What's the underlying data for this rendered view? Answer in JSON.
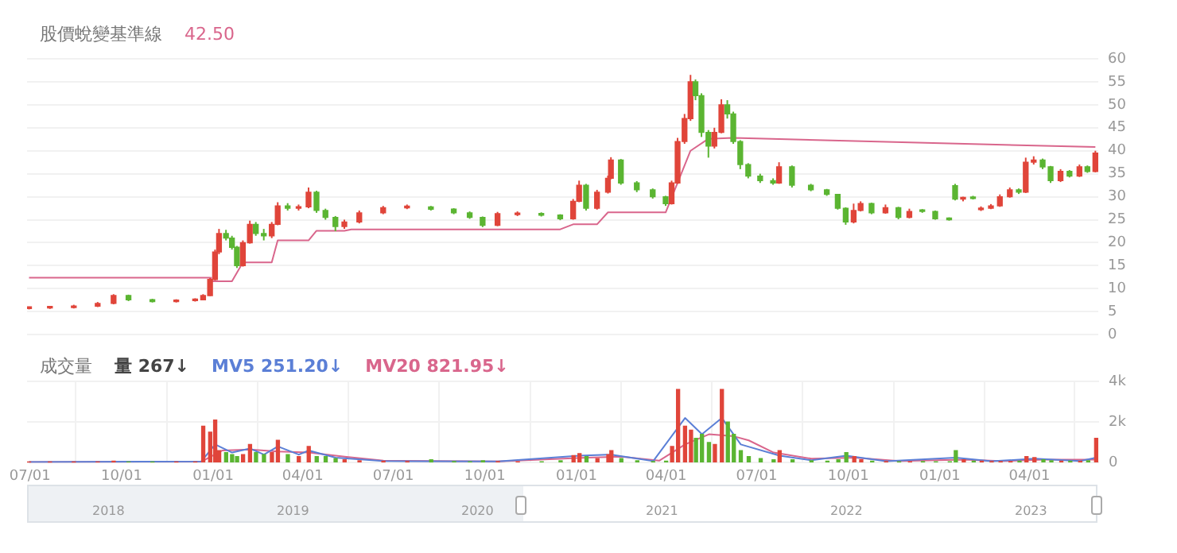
{
  "chart_data": [
    {
      "type": "candlestick",
      "legend": "top left",
      "tick_labels": "y",
      "grid": true,
      "x": [
        "2020-06-30",
        "2020-07-21",
        "2020-08-14",
        "2020-09-07",
        "2020-09-23",
        "2020-10-08",
        "2020-11-01",
        "2020-11-25",
        "2020-12-14",
        "2020-12-22",
        "2020-12-29",
        "2021-01-03",
        "2021-01-07",
        "2021-01-14",
        "2021-01-20",
        "2021-01-25",
        "2021-01-31",
        "2021-02-07",
        "2021-02-13",
        "2021-02-21",
        "2021-03-01",
        "2021-03-07",
        "2021-03-17",
        "2021-03-28",
        "2021-04-07",
        "2021-04-15",
        "2021-04-24",
        "2021-05-04",
        "2021-05-13",
        "2021-05-28",
        "2021-06-21",
        "2021-07-15",
        "2021-08-08",
        "2021-08-31",
        "2021-09-16",
        "2021-09-29",
        "2021-10-14",
        "2021-11-03",
        "2021-11-27",
        "2021-12-16",
        "2021-12-29",
        "2022-01-04",
        "2022-01-11",
        "2022-01-22",
        "2022-02-02",
        "2022-02-05",
        "2022-02-15",
        "2022-03-03",
        "2022-03-19",
        "2022-04-01",
        "2022-04-07",
        "2022-04-13",
        "2022-04-20",
        "2022-04-26",
        "2022-05-01",
        "2022-05-07",
        "2022-05-14",
        "2022-05-20",
        "2022-05-27",
        "2022-06-02",
        "2022-06-08",
        "2022-06-15",
        "2022-06-23",
        "2022-07-05",
        "2022-07-18",
        "2022-07-24",
        "2022-08-06",
        "2022-08-25",
        "2022-09-10",
        "2022-09-21",
        "2022-09-29",
        "2022-10-07",
        "2022-10-14",
        "2022-10-25",
        "2022-11-08",
        "2022-11-21",
        "2022-12-02",
        "2022-12-15",
        "2022-12-28",
        "2023-01-11",
        "2023-01-17",
        "2023-01-25",
        "2023-02-04",
        "2023-02-12",
        "2023-02-22",
        "2023-03-03",
        "2023-03-13",
        "2023-03-22",
        "2023-03-29",
        "2023-04-06",
        "2023-04-15",
        "2023-04-23",
        "2023-05-03",
        "2023-05-12",
        "2023-05-22",
        "2023-05-30",
        "2023-06-07"
      ],
      "ohlc": [
        [
          5.7,
          6.1,
          5.5,
          5.8
        ],
        [
          5.8,
          6.2,
          5.6,
          5.9
        ],
        [
          5.9,
          6.5,
          5.7,
          6.2
        ],
        [
          6.2,
          7.1,
          6.0,
          6.8
        ],
        [
          6.8,
          8.8,
          6.6,
          8.5
        ],
        [
          8.5,
          8.7,
          7.3,
          7.6
        ],
        [
          7.6,
          7.8,
          7.0,
          7.2
        ],
        [
          7.2,
          7.7,
          7.0,
          7.4
        ],
        [
          7.4,
          7.9,
          7.2,
          7.6
        ],
        [
          7.6,
          8.8,
          7.5,
          8.5
        ],
        [
          8.5,
          12.3,
          8.4,
          12
        ],
        [
          12,
          18.5,
          11.8,
          18
        ],
        [
          18,
          23,
          17.5,
          22
        ],
        [
          22,
          22.8,
          20.5,
          21
        ],
        [
          21,
          21.5,
          18.5,
          19
        ],
        [
          19,
          19.3,
          14.5,
          15
        ],
        [
          15,
          20.5,
          14.8,
          20
        ],
        [
          20,
          24.8,
          19.8,
          24
        ],
        [
          24,
          24.5,
          21.5,
          22
        ],
        [
          22,
          23,
          20.5,
          21.5
        ],
        [
          21.5,
          24.5,
          21,
          24
        ],
        [
          24,
          28.8,
          23.8,
          28
        ],
        [
          28,
          28.6,
          27,
          27.5
        ],
        [
          27.5,
          28.3,
          27,
          27.8
        ],
        [
          27.8,
          32,
          27.5,
          31
        ],
        [
          31,
          31.3,
          26.5,
          27
        ],
        [
          27,
          27.4,
          25,
          25.5
        ],
        [
          25.5,
          25.8,
          22.5,
          23.5
        ],
        [
          23.5,
          25,
          23,
          24.5
        ],
        [
          24.5,
          27,
          24.2,
          26.5
        ],
        [
          26.5,
          28,
          26.2,
          27.6
        ],
        [
          27.6,
          28.3,
          27.3,
          27.8
        ],
        [
          27.8,
          28,
          27,
          27.3
        ],
        [
          27.3,
          27.5,
          26.2,
          26.5
        ],
        [
          26.5,
          26.8,
          25.2,
          25.5
        ],
        [
          25.5,
          25.7,
          23.4,
          23.8
        ],
        [
          23.8,
          26.7,
          23.6,
          26.3
        ],
        [
          26.1,
          26.8,
          25.8,
          26.3
        ],
        [
          26.3,
          26.6,
          25.7,
          26
        ],
        [
          26,
          26.2,
          24.9,
          25.2
        ],
        [
          25.2,
          29.5,
          25,
          29
        ],
        [
          29,
          33.5,
          28.8,
          32.5
        ],
        [
          32.5,
          32.8,
          27,
          27.5
        ],
        [
          27.5,
          31.5,
          27.2,
          31
        ],
        [
          31,
          34.6,
          30.7,
          34
        ],
        [
          34,
          38.6,
          33.8,
          38
        ],
        [
          38,
          38.2,
          32.6,
          33
        ],
        [
          33,
          33.4,
          31,
          31.5
        ],
        [
          31.5,
          31.8,
          29.6,
          30
        ],
        [
          30,
          30.2,
          28,
          28.5
        ],
        [
          28.5,
          33.5,
          28.3,
          33
        ],
        [
          33,
          42.8,
          32.8,
          42
        ],
        [
          42,
          48,
          41.5,
          47
        ],
        [
          47,
          56.5,
          46.5,
          55
        ],
        [
          55,
          55.5,
          51,
          52
        ],
        [
          52,
          52.5,
          43,
          44
        ],
        [
          44,
          44.5,
          38.5,
          41
        ],
        [
          41,
          45,
          40.5,
          44
        ],
        [
          44,
          51.2,
          43.8,
          50
        ],
        [
          50,
          51,
          47,
          48
        ],
        [
          48,
          48.5,
          41.5,
          42
        ],
        [
          42,
          42.3,
          36,
          37
        ],
        [
          37,
          37.3,
          34,
          34.5
        ],
        [
          34.5,
          35,
          33,
          33.5
        ],
        [
          33.5,
          34,
          32.6,
          33
        ],
        [
          33,
          37.5,
          32.8,
          36.5
        ],
        [
          36.5,
          36.8,
          32,
          32.5
        ],
        [
          32.5,
          32.8,
          31.2,
          31.5
        ],
        [
          31.5,
          31.7,
          30.2,
          30.5
        ],
        [
          30.5,
          30.6,
          27.2,
          27.5
        ],
        [
          27.5,
          27.7,
          23.9,
          24.5
        ],
        [
          24.5,
          28.5,
          24.2,
          27
        ],
        [
          27,
          29,
          26.8,
          28.5
        ],
        [
          28.5,
          28.7,
          26.2,
          26.5
        ],
        [
          26.5,
          28.3,
          26.3,
          27.6
        ],
        [
          27.6,
          27.8,
          25.1,
          25.5
        ],
        [
          25.5,
          27.4,
          25.3,
          26.8
        ],
        [
          27,
          27.3,
          26.5,
          26.8
        ],
        [
          26.8,
          27,
          25,
          25.2
        ],
        [
          25.2,
          25.5,
          24.8,
          25
        ],
        [
          32.4,
          32.8,
          29.2,
          29.5
        ],
        [
          29.5,
          30,
          29,
          29.8
        ],
        [
          29.8,
          30.2,
          29.4,
          29.6
        ],
        [
          27.2,
          27.9,
          26.9,
          27.5
        ],
        [
          27.5,
          28.4,
          27.3,
          28
        ],
        [
          28,
          30.5,
          27.8,
          30
        ],
        [
          30,
          32,
          29.8,
          31.5
        ],
        [
          31.5,
          31.8,
          30.6,
          31
        ],
        [
          31,
          38.5,
          30.8,
          37.5
        ],
        [
          37.5,
          38.8,
          37,
          38
        ],
        [
          38,
          38.3,
          36,
          36.5
        ],
        [
          36.5,
          36.7,
          33,
          33.5
        ],
        [
          33.5,
          36,
          33.2,
          35.5
        ],
        [
          35.5,
          35.8,
          34.2,
          34.5
        ],
        [
          34.5,
          37,
          34.3,
          36.5
        ],
        [
          36.5,
          36.8,
          35.2,
          35.5
        ],
        [
          35.5,
          40,
          35.3,
          39.5
        ]
      ],
      "colors": [
        "#e0453a",
        "#e0453a",
        "#e0453a",
        "#e0453a",
        "#e0453a",
        "#5bb532",
        "#5bb532",
        "#e0453a",
        "#e0453a",
        "#e0453a",
        "#e0453a",
        "#e0453a",
        "#e0453a",
        "#5bb532",
        "#5bb532",
        "#5bb532",
        "#e0453a",
        "#e0453a",
        "#5bb532",
        "#5bb532",
        "#e0453a",
        "#e0453a",
        "#5bb532",
        "#e0453a",
        "#e0453a",
        "#5bb532",
        "#5bb532",
        "#5bb532",
        "#e0453a",
        "#e0453a",
        "#e0453a",
        "#e0453a",
        "#5bb532",
        "#5bb532",
        "#5bb532",
        "#5bb532",
        "#e0453a",
        "#e0453a",
        "#5bb532",
        "#5bb532",
        "#e0453a",
        "#e0453a",
        "#5bb532",
        "#e0453a",
        "#e0453a",
        "#e0453a",
        "#5bb532",
        "#5bb532",
        "#5bb532",
        "#5bb532",
        "#e0453a",
        "#e0453a",
        "#e0453a",
        "#e0453a",
        "#5bb532",
        "#5bb532",
        "#5bb532",
        "#e0453a",
        "#e0453a",
        "#5bb532",
        "#5bb532",
        "#5bb532",
        "#5bb532",
        "#5bb532",
        "#5bb532",
        "#e0453a",
        "#5bb532",
        "#5bb532",
        "#5bb532",
        "#5bb532",
        "#5bb532",
        "#e0453a",
        "#e0453a",
        "#5bb532",
        "#e0453a",
        "#5bb532",
        "#e0453a",
        "#5bb532",
        "#5bb532",
        "#5bb532",
        "#5bb532",
        "#e0453a",
        "#5bb532",
        "#e0453a",
        "#e0453a",
        "#e0453a",
        "#e0453a",
        "#5bb532",
        "#e0453a",
        "#e0453a",
        "#5bb532",
        "#5bb532",
        "#e0453a",
        "#5bb532",
        "#e0453a",
        "#5bb532",
        "#e0453a"
      ],
      "series": [
        {
          "name": "股價蛻變基準線",
          "type": "line",
          "color": "#d9668c",
          "x": [
            "2020-06-30",
            "2020-12-29",
            "2020-12-30",
            "2021-01-20",
            "2021-01-31",
            "2021-03-01",
            "2021-03-07",
            "2021-04-07",
            "2021-04-15",
            "2021-05-13",
            "2021-05-20",
            "2021-12-16",
            "2021-12-29",
            "2022-01-22",
            "2022-02-02",
            "2022-04-01",
            "2022-04-13",
            "2022-04-26",
            "2022-05-14",
            "2022-06-08",
            "2023-06-07"
          ],
          "values": [
            12.4,
            12.4,
            11.6,
            11.6,
            15.7,
            15.7,
            20.5,
            20.5,
            22.6,
            22.6,
            22.9,
            22.9,
            24,
            24,
            26.6,
            26.6,
            33,
            40,
            42.6,
            42.8,
            40.8
          ]
        }
      ],
      "annotations": [
        "42.50"
      ],
      "xlim": [
        "2020-06-28",
        "2023-06-10"
      ],
      "xticks": [
        {
          "value": "2020-07-01",
          "label": null
        },
        {
          "value": "2020-10-01",
          "label": null
        },
        {
          "value": "2021-01-01",
          "label": null
        },
        {
          "value": "2021-04-01",
          "label": null
        },
        {
          "value": "2021-07-01",
          "label": null
        },
        {
          "value": "2021-10-01",
          "label": null
        },
        {
          "value": "2022-01-01",
          "label": null
        },
        {
          "value": "2022-04-01",
          "label": null
        },
        {
          "value": "2022-07-01",
          "label": null
        },
        {
          "value": "2022-10-01",
          "label": null
        },
        {
          "value": "2023-01-01",
          "label": null
        },
        {
          "value": "2023-04-01",
          "label": null
        }
      ],
      "ylim": [
        0,
        60
      ],
      "yticks": [
        0,
        5,
        10,
        15,
        20,
        25,
        30,
        35,
        40,
        45,
        50,
        55,
        60
      ]
    },
    {
      "type": "bar",
      "title": "成交量",
      "legend": "top left",
      "grid": true,
      "x": [
        "2020-06-30",
        "2020-07-21",
        "2020-08-14",
        "2020-09-07",
        "2020-09-23",
        "2020-10-08",
        "2020-11-01",
        "2020-11-25",
        "2020-12-14",
        "2020-12-22",
        "2020-12-29",
        "2021-01-03",
        "2021-01-07",
        "2021-01-14",
        "2021-01-20",
        "2021-01-25",
        "2021-01-31",
        "2021-02-07",
        "2021-02-13",
        "2021-02-21",
        "2021-03-01",
        "2021-03-07",
        "2021-03-17",
        "2021-03-28",
        "2021-04-07",
        "2021-04-15",
        "2021-04-24",
        "2021-05-04",
        "2021-05-13",
        "2021-05-28",
        "2021-06-21",
        "2021-07-15",
        "2021-08-08",
        "2021-08-31",
        "2021-09-16",
        "2021-09-29",
        "2021-10-14",
        "2021-11-03",
        "2021-11-27",
        "2021-12-16",
        "2021-12-29",
        "2022-01-04",
        "2022-01-11",
        "2022-01-22",
        "2022-02-02",
        "2022-02-05",
        "2022-02-15",
        "2022-03-03",
        "2022-03-19",
        "2022-04-01",
        "2022-04-07",
        "2022-04-13",
        "2022-04-20",
        "2022-04-26",
        "2022-05-01",
        "2022-05-07",
        "2022-05-14",
        "2022-05-20",
        "2022-05-27",
        "2022-06-02",
        "2022-06-08",
        "2022-06-15",
        "2022-06-23",
        "2022-07-05",
        "2022-07-18",
        "2022-07-24",
        "2022-08-06",
        "2022-08-25",
        "2022-09-10",
        "2022-09-21",
        "2022-09-29",
        "2022-10-07",
        "2022-10-14",
        "2022-10-25",
        "2022-11-08",
        "2022-11-21",
        "2022-12-02",
        "2022-12-15",
        "2022-12-28",
        "2023-01-11",
        "2023-01-17",
        "2023-01-25",
        "2023-02-04",
        "2023-02-12",
        "2023-02-22",
        "2023-03-03",
        "2023-03-13",
        "2023-03-22",
        "2023-03-29",
        "2023-04-06",
        "2023-04-15",
        "2023-04-23",
        "2023-05-03",
        "2023-05-12",
        "2023-05-22",
        "2023-05-30",
        "2023-06-07"
      ],
      "series": [
        {
          "name": "量 267↓",
          "type": "bar",
          "colors": [
            "#e0453a",
            "#e0453a",
            "#e0453a",
            "#e0453a",
            "#e0453a",
            "#5bb532",
            "#5bb532",
            "#e0453a",
            "#e0453a",
            "#e0453a",
            "#e0453a",
            "#e0453a",
            "#e0453a",
            "#5bb532",
            "#5bb532",
            "#5bb532",
            "#e0453a",
            "#e0453a",
            "#5bb532",
            "#5bb532",
            "#e0453a",
            "#e0453a",
            "#5bb532",
            "#e0453a",
            "#e0453a",
            "#5bb532",
            "#5bb532",
            "#5bb532",
            "#e0453a",
            "#e0453a",
            "#e0453a",
            "#e0453a",
            "#5bb532",
            "#5bb532",
            "#5bb532",
            "#5bb532",
            "#e0453a",
            "#e0453a",
            "#5bb532",
            "#5bb532",
            "#e0453a",
            "#e0453a",
            "#5bb532",
            "#e0453a",
            "#e0453a",
            "#e0453a",
            "#5bb532",
            "#5bb532",
            "#5bb532",
            "#5bb532",
            "#e0453a",
            "#e0453a",
            "#e0453a",
            "#e0453a",
            "#5bb532",
            "#5bb532",
            "#5bb532",
            "#e0453a",
            "#e0453a",
            "#5bb532",
            "#5bb532",
            "#5bb532",
            "#5bb532",
            "#5bb532",
            "#5bb532",
            "#e0453a",
            "#5bb532",
            "#5bb532",
            "#5bb532",
            "#5bb532",
            "#5bb532",
            "#e0453a",
            "#e0453a",
            "#5bb532",
            "#e0453a",
            "#5bb532",
            "#e0453a",
            "#5bb532",
            "#5bb532",
            "#5bb532",
            "#5bb532",
            "#e0453a",
            "#5bb532",
            "#e0453a",
            "#e0453a",
            "#e0453a",
            "#e0453a",
            "#5bb532",
            "#e0453a",
            "#e0453a",
            "#5bb532",
            "#5bb532",
            "#e0453a",
            "#5bb532",
            "#e0453a",
            "#5bb532",
            "#e0453a"
          ],
          "values": [
            30,
            30,
            30,
            40,
            80,
            40,
            30,
            30,
            30,
            1800,
            1500,
            2100,
            600,
            500,
            400,
            300,
            400,
            900,
            500,
            400,
            500,
            1100,
            400,
            300,
            800,
            300,
            300,
            200,
            150,
            100,
            80,
            60,
            150,
            60,
            50,
            100,
            60,
            50,
            50,
            100,
            350,
            450,
            300,
            200,
            400,
            600,
            200,
            100,
            60,
            80,
            800,
            3600,
            1800,
            1600,
            1200,
            1400,
            1000,
            900,
            3600,
            2000,
            1400,
            600,
            300,
            200,
            150,
            600,
            150,
            100,
            80,
            150,
            500,
            300,
            150,
            80,
            60,
            50,
            50,
            60,
            50,
            50,
            600,
            150,
            80,
            80,
            60,
            60,
            60,
            80,
            300,
            250,
            150,
            100,
            80,
            80,
            80,
            100,
            1200
          ]
        },
        {
          "name": "MV5 251.20↓",
          "type": "line",
          "color": "#5b7fd6",
          "x": [
            "2020-06-30",
            "2020-12-20",
            "2021-01-03",
            "2021-01-20",
            "2021-02-07",
            "2021-02-21",
            "2021-03-07",
            "2021-03-28",
            "2021-04-07",
            "2021-05-04",
            "2021-06-21",
            "2021-10-14",
            "2022-01-04",
            "2022-02-05",
            "2022-03-19",
            "2022-04-20",
            "2022-05-07",
            "2022-05-27",
            "2022-06-15",
            "2022-07-24",
            "2022-08-25",
            "2022-09-29",
            "2022-11-08",
            "2023-01-17",
            "2023-02-22",
            "2023-04-06",
            "2023-05-22",
            "2023-06-07"
          ],
          "values": [
            40,
            60,
            900,
            500,
            700,
            400,
            800,
            400,
            600,
            250,
            80,
            60,
            350,
            400,
            80,
            2200,
            1400,
            2200,
            900,
            350,
            120,
            350,
            70,
            250,
            70,
            200,
            80,
            250
          ]
        },
        {
          "name": "MV20 821.95↓",
          "type": "line",
          "color": "#d9668c",
          "x": [
            "2020-06-30",
            "2020-12-20",
            "2021-01-10",
            "2021-02-07",
            "2021-03-07",
            "2021-04-07",
            "2021-05-13",
            "2021-06-21",
            "2021-10-14",
            "2022-01-11",
            "2022-02-15",
            "2022-03-25",
            "2022-04-20",
            "2022-05-14",
            "2022-06-08",
            "2022-06-23",
            "2022-07-18",
            "2022-08-25",
            "2022-10-07",
            "2022-11-21",
            "2023-01-25",
            "2023-03-03",
            "2023-04-15",
            "2023-06-07"
          ],
          "values": [
            40,
            50,
            600,
            650,
            550,
            500,
            300,
            100,
            60,
            250,
            300,
            100,
            900,
            1400,
            1300,
            1100,
            500,
            200,
            250,
            80,
            150,
            80,
            150,
            150
          ]
        }
      ],
      "annotations": [
        "2018",
        "2019",
        "2020",
        "2021",
        "2022",
        "2023"
      ],
      "xlim": [
        "2020-06-28",
        "2023-06-10"
      ],
      "xticks": [
        {
          "value": "2020-07-01",
          "label": "07/01"
        },
        {
          "value": "2020-10-01",
          "label": "10/01"
        },
        {
          "value": "2021-01-01",
          "label": "01/01"
        },
        {
          "value": "2021-04-01",
          "label": "04/01"
        },
        {
          "value": "2021-07-01",
          "label": "07/01"
        },
        {
          "value": "2021-10-01",
          "label": "10/01"
        },
        {
          "value": "2022-01-01",
          "label": "01/01"
        },
        {
          "value": "2022-04-01",
          "label": "04/01"
        },
        {
          "value": "2022-07-01",
          "label": "07/01"
        },
        {
          "value": "2022-10-01",
          "label": "10/01"
        },
        {
          "value": "2023-01-01",
          "label": "01/01"
        },
        {
          "value": "2023-04-01",
          "label": "04/01"
        }
      ],
      "ylim": [
        0,
        4000
      ],
      "yticks": [
        0,
        {
          "value": 2000,
          "label": "2k"
        },
        {
          "value": 4000,
          "label": "4k"
        }
      ]
    }
  ]
}
